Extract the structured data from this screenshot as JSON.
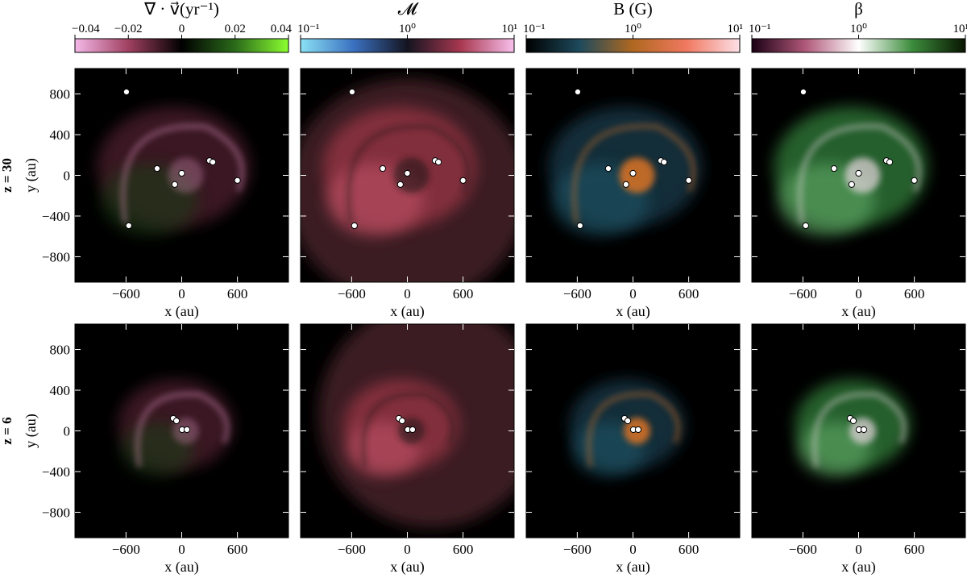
{
  "colorbars": [
    {
      "label": "∇ · v⃗(yr⁻¹)",
      "scale": "linear",
      "lim": [
        -0.04,
        0.04
      ],
      "ticks": [
        {
          "value": -0.04,
          "label": "−0.04"
        },
        {
          "value": -0.02,
          "label": "−0.02"
        },
        0,
        0.02,
        0.04
      ],
      "colors": [
        "#f4b8e8",
        "#a04060",
        "#000000",
        "#2a6a1a",
        "#8cff30"
      ]
    },
    {
      "label": "𝓜",
      "scale": "log",
      "lim": [
        0.1,
        10
      ],
      "ticks": [
        {
          "value": 0.1,
          "label": "10⁻¹"
        },
        {
          "value": 1,
          "label": "10⁰"
        },
        {
          "value": 10,
          "label": "10¹"
        }
      ],
      "colors": [
        "#8ae0f4",
        "#3a70c0",
        "#141420",
        "#a83850",
        "#f8c0ec"
      ]
    },
    {
      "label": "B (G)",
      "scale": "log",
      "lim": [
        0.1,
        10
      ],
      "ticks": [
        {
          "value": 0.1,
          "label": "10⁻¹"
        },
        {
          "value": 1,
          "label": "10⁰"
        },
        {
          "value": 10,
          "label": "10¹"
        }
      ],
      "colors": [
        "#000000",
        "#1d4a5c",
        "#b06820",
        "#f07860",
        "#fde0e8"
      ]
    },
    {
      "label": "β",
      "scale": "log",
      "lim": [
        0.1,
        10
      ],
      "ticks": [
        {
          "value": 0.1,
          "label": "10⁻¹"
        },
        {
          "value": 1,
          "label": "10⁰"
        },
        {
          "value": 10,
          "label": "10¹"
        }
      ],
      "colors": [
        "#1a0014",
        "#b05878",
        "#ffffff",
        "#3c8c3c",
        "#081400"
      ]
    }
  ],
  "rows": [
    {
      "label": "z = 30",
      "sinks": {
        "x": [
          -595,
          -265,
          0,
          -75,
          300,
          335,
          600,
          -570
        ],
        "y": [
          820,
          67,
          20,
          -90,
          145,
          130,
          -50,
          -495
        ]
      }
    },
    {
      "label": "z = 6",
      "sinks": {
        "x": [
          -91,
          -56,
          4,
          56
        ],
        "y": [
          123,
          99,
          12,
          12
        ]
      }
    }
  ],
  "xlabel": "x (au)",
  "ylabel": "y (au)",
  "xlim": [
    -1150,
    1150
  ],
  "ylim": [
    -1050,
    1050
  ],
  "xticks": [
    {
      "value": -600,
      "label": "−600"
    },
    0,
    600
  ],
  "yticks": [
    {
      "value": -800,
      "label": "−800"
    },
    {
      "value": -400,
      "label": "−400"
    },
    0,
    400,
    800
  ]
}
